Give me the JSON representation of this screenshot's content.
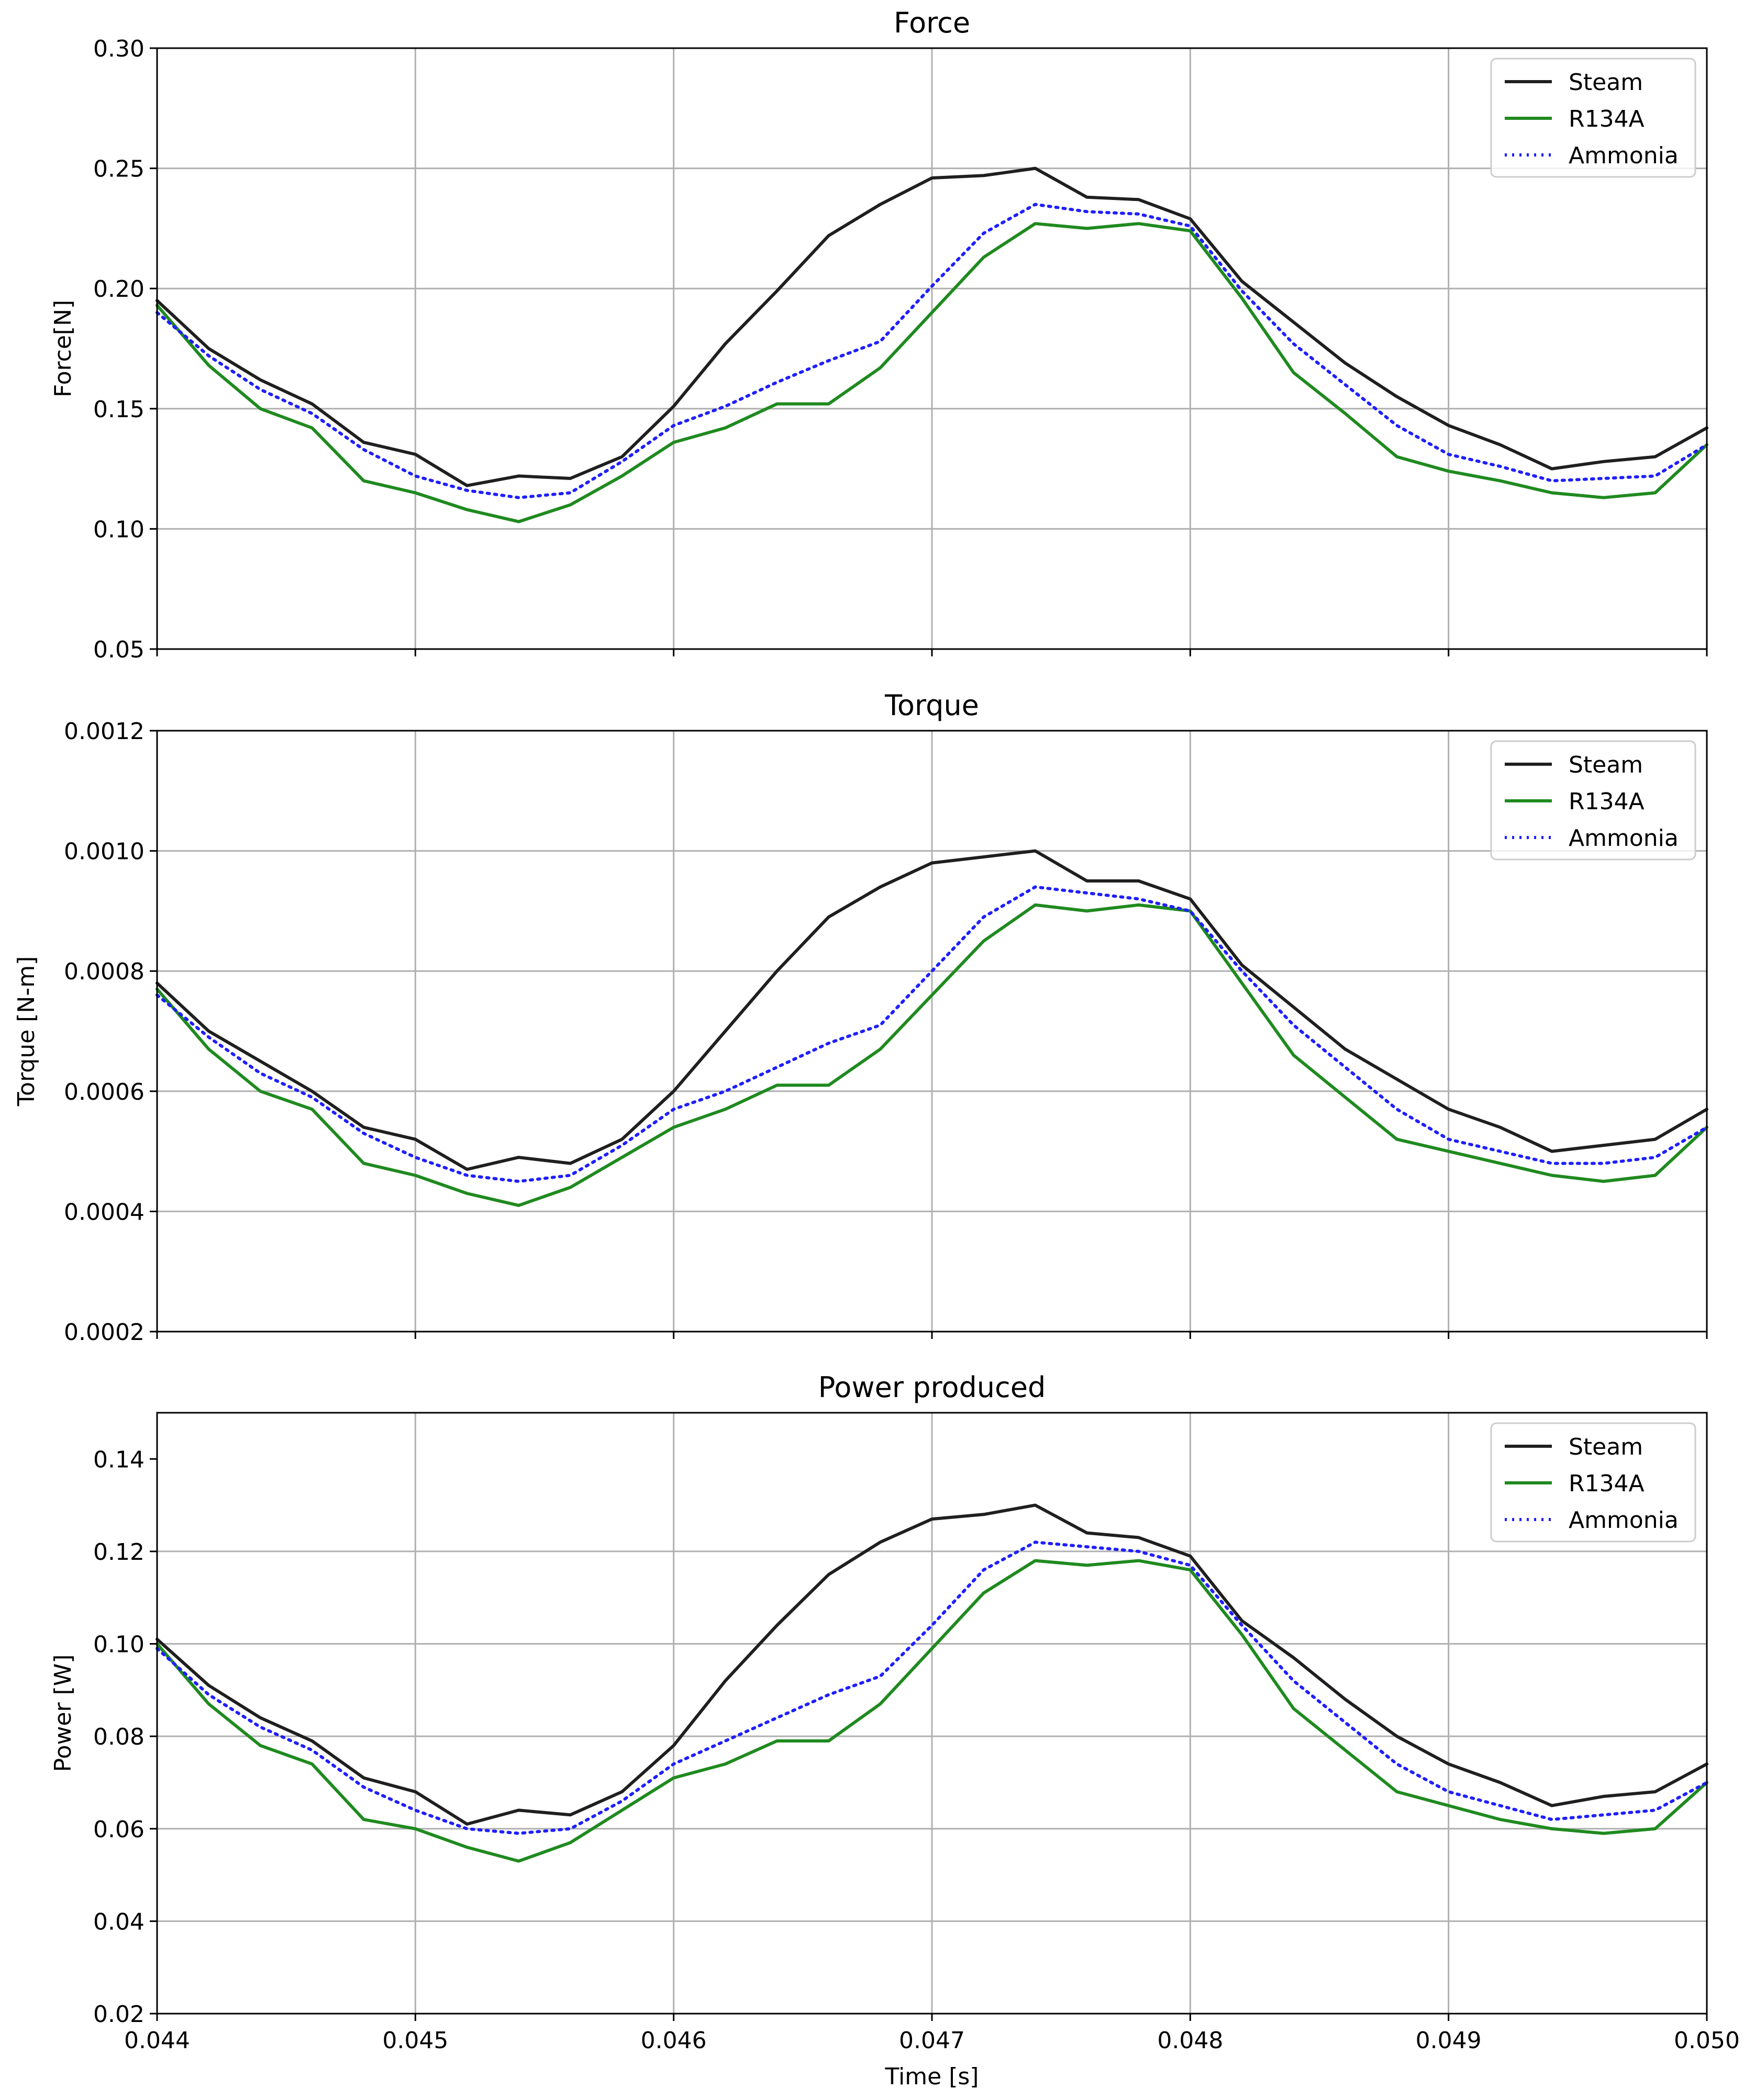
{
  "colors": {
    "steam": "#1f1f1f",
    "r134a": "#1f8a1f",
    "ammonia": "#1f1fff",
    "grid": "#b0b0b0",
    "axis": "#000000"
  },
  "chart_data": [
    {
      "type": "line",
      "title": "Force",
      "xlabel": "",
      "ylabel": "Force[N]",
      "xlim": [
        0.044,
        0.05
      ],
      "ylim": [
        0.05,
        0.3
      ],
      "grid": true,
      "legend_position": "top-right",
      "x_ticks": [
        0.044,
        0.045,
        0.046,
        0.047,
        0.048,
        0.049,
        0.05
      ],
      "x_tick_labels": [],
      "y_ticks": [
        0.05,
        0.1,
        0.15,
        0.2,
        0.25,
        0.3
      ],
      "y_tick_labels": [
        "0.05",
        "0.10",
        "0.15",
        "0.20",
        "0.25",
        "0.30"
      ],
      "x": [
        0.044,
        0.0442,
        0.0444,
        0.0446,
        0.0448,
        0.045,
        0.0452,
        0.0454,
        0.0456,
        0.0458,
        0.046,
        0.0462,
        0.0464,
        0.0466,
        0.0468,
        0.047,
        0.0472,
        0.0474,
        0.0476,
        0.0478,
        0.048,
        0.0482,
        0.0484,
        0.0486,
        0.0488,
        0.049,
        0.0492,
        0.0494,
        0.0496,
        0.0498,
        0.05
      ],
      "series": [
        {
          "name": "Steam",
          "style": "solid",
          "values": [
            0.195,
            0.175,
            0.162,
            0.152,
            0.136,
            0.131,
            0.118,
            0.122,
            0.121,
            0.13,
            0.151,
            0.177,
            0.199,
            0.222,
            0.235,
            0.246,
            0.247,
            0.25,
            0.238,
            0.237,
            0.229,
            0.203,
            0.186,
            0.169,
            0.155,
            0.143,
            0.135,
            0.125,
            0.128,
            0.13,
            0.142
          ]
        },
        {
          "name": "R134A",
          "style": "solid",
          "values": [
            0.193,
            0.168,
            0.15,
            0.142,
            0.12,
            0.115,
            0.108,
            0.103,
            0.11,
            0.122,
            0.136,
            0.142,
            0.152,
            0.152,
            0.167,
            0.19,
            0.213,
            0.227,
            0.225,
            0.227,
            0.224,
            0.196,
            0.165,
            0.148,
            0.13,
            0.124,
            0.12,
            0.115,
            0.113,
            0.115,
            0.135
          ]
        },
        {
          "name": "Ammonia",
          "style": "dotted",
          "values": [
            0.19,
            0.172,
            0.158,
            0.148,
            0.133,
            0.122,
            0.116,
            0.113,
            0.115,
            0.128,
            0.143,
            0.151,
            0.161,
            0.17,
            0.178,
            0.201,
            0.223,
            0.235,
            0.232,
            0.231,
            0.226,
            0.199,
            0.177,
            0.16,
            0.143,
            0.131,
            0.126,
            0.12,
            0.121,
            0.122,
            0.135
          ]
        }
      ]
    },
    {
      "type": "line",
      "title": "Torque",
      "xlabel": "",
      "ylabel": "Torque [N-m]",
      "xlim": [
        0.044,
        0.05
      ],
      "ylim": [
        0.0002,
        0.0012
      ],
      "grid": true,
      "legend_position": "top-right",
      "x_ticks": [
        0.044,
        0.045,
        0.046,
        0.047,
        0.048,
        0.049,
        0.05
      ],
      "x_tick_labels": [],
      "y_ticks": [
        0.0002,
        0.0004,
        0.0006,
        0.0008,
        0.001,
        0.0012
      ],
      "y_tick_labels": [
        "0.0002",
        "0.0004",
        "0.0006",
        "0.0008",
        "0.0010",
        "0.0012"
      ],
      "x": [
        0.044,
        0.0442,
        0.0444,
        0.0446,
        0.0448,
        0.045,
        0.0452,
        0.0454,
        0.0456,
        0.0458,
        0.046,
        0.0462,
        0.0464,
        0.0466,
        0.0468,
        0.047,
        0.0472,
        0.0474,
        0.0476,
        0.0478,
        0.048,
        0.0482,
        0.0484,
        0.0486,
        0.0488,
        0.049,
        0.0492,
        0.0494,
        0.0496,
        0.0498,
        0.05
      ],
      "series": [
        {
          "name": "Steam",
          "style": "solid",
          "values": [
            0.00078,
            0.0007,
            0.00065,
            0.0006,
            0.00054,
            0.00052,
            0.00047,
            0.00049,
            0.00048,
            0.00052,
            0.0006,
            0.0007,
            0.0008,
            0.00089,
            0.00094,
            0.00098,
            0.00099,
            0.001,
            0.00095,
            0.00095,
            0.00092,
            0.00081,
            0.00074,
            0.00067,
            0.00062,
            0.00057,
            0.00054,
            0.0005,
            0.00051,
            0.00052,
            0.00057
          ]
        },
        {
          "name": "R134A",
          "style": "solid",
          "values": [
            0.00077,
            0.00067,
            0.0006,
            0.00057,
            0.00048,
            0.00046,
            0.00043,
            0.00041,
            0.00044,
            0.00049,
            0.00054,
            0.00057,
            0.00061,
            0.00061,
            0.00067,
            0.00076,
            0.00085,
            0.00091,
            0.0009,
            0.00091,
            0.0009,
            0.00078,
            0.00066,
            0.00059,
            0.00052,
            0.0005,
            0.00048,
            0.00046,
            0.00045,
            0.00046,
            0.00054
          ]
        },
        {
          "name": "Ammonia",
          "style": "dotted",
          "values": [
            0.00076,
            0.00069,
            0.00063,
            0.00059,
            0.00053,
            0.00049,
            0.00046,
            0.00045,
            0.00046,
            0.00051,
            0.00057,
            0.0006,
            0.00064,
            0.00068,
            0.00071,
            0.0008,
            0.00089,
            0.00094,
            0.00093,
            0.00092,
            0.0009,
            0.0008,
            0.00071,
            0.00064,
            0.00057,
            0.00052,
            0.0005,
            0.00048,
            0.00048,
            0.00049,
            0.00054
          ]
        }
      ]
    },
    {
      "type": "line",
      "title": "Power produced",
      "xlabel": "Time [s]",
      "ylabel": "Power [W]",
      "xlim": [
        0.044,
        0.05
      ],
      "ylim": [
        0.02,
        0.15
      ],
      "grid": true,
      "legend_position": "top-right",
      "x_ticks": [
        0.044,
        0.045,
        0.046,
        0.047,
        0.048,
        0.049,
        0.05
      ],
      "x_tick_labels": [
        "0.044",
        "0.045",
        "0.046",
        "0.047",
        "0.048",
        "0.049",
        "0.050"
      ],
      "y_ticks": [
        0.02,
        0.04,
        0.06,
        0.08,
        0.1,
        0.12,
        0.14
      ],
      "y_tick_labels": [
        "0.02",
        "0.04",
        "0.06",
        "0.08",
        "0.10",
        "0.12",
        "0.14"
      ],
      "x": [
        0.044,
        0.0442,
        0.0444,
        0.0446,
        0.0448,
        0.045,
        0.0452,
        0.0454,
        0.0456,
        0.0458,
        0.046,
        0.0462,
        0.0464,
        0.0466,
        0.0468,
        0.047,
        0.0472,
        0.0474,
        0.0476,
        0.0478,
        0.048,
        0.0482,
        0.0484,
        0.0486,
        0.0488,
        0.049,
        0.0492,
        0.0494,
        0.0496,
        0.0498,
        0.05
      ],
      "series": [
        {
          "name": "Steam",
          "style": "solid",
          "values": [
            0.101,
            0.091,
            0.084,
            0.079,
            0.071,
            0.068,
            0.061,
            0.064,
            0.063,
            0.068,
            0.078,
            0.092,
            0.104,
            0.115,
            0.122,
            0.127,
            0.128,
            0.13,
            0.124,
            0.123,
            0.119,
            0.105,
            0.097,
            0.088,
            0.08,
            0.074,
            0.07,
            0.065,
            0.067,
            0.068,
            0.074
          ]
        },
        {
          "name": "R134A",
          "style": "solid",
          "values": [
            0.1,
            0.087,
            0.078,
            0.074,
            0.062,
            0.06,
            0.056,
            0.053,
            0.057,
            0.064,
            0.071,
            0.074,
            0.079,
            0.079,
            0.087,
            0.099,
            0.111,
            0.118,
            0.117,
            0.118,
            0.116,
            0.102,
            0.086,
            0.077,
            0.068,
            0.065,
            0.062,
            0.06,
            0.059,
            0.06,
            0.07
          ]
        },
        {
          "name": "Ammonia",
          "style": "dotted",
          "values": [
            0.099,
            0.089,
            0.082,
            0.077,
            0.069,
            0.064,
            0.06,
            0.059,
            0.06,
            0.066,
            0.074,
            0.079,
            0.084,
            0.089,
            0.093,
            0.104,
            0.116,
            0.122,
            0.121,
            0.12,
            0.117,
            0.104,
            0.092,
            0.083,
            0.074,
            0.068,
            0.065,
            0.062,
            0.063,
            0.064,
            0.07
          ]
        }
      ]
    }
  ]
}
